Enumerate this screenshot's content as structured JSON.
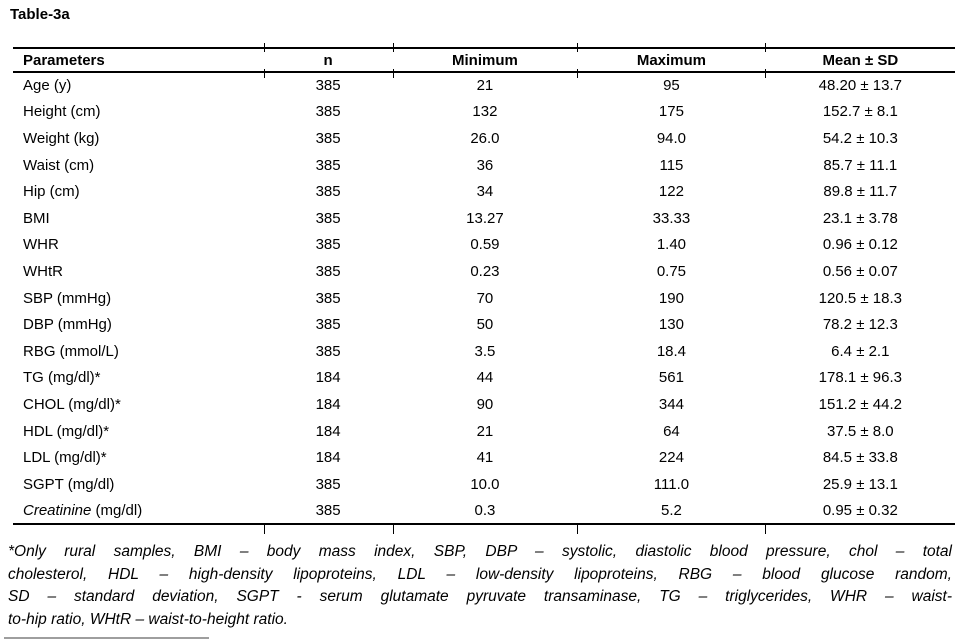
{
  "title": "Table-3a",
  "colors": {
    "text": "#000000",
    "rule": "#000000",
    "background": "#ffffff"
  },
  "table": {
    "columns": [
      "Parameters",
      "n",
      "Minimum",
      "Maximum",
      "Mean ± SD"
    ],
    "rows": [
      {
        "parameter": "Age (y)",
        "n": "385",
        "minimum": "21",
        "maximum": "95",
        "mean_sd": "48.20 ± 13.7"
      },
      {
        "parameter": "Height (cm)",
        "n": "385",
        "minimum": "132",
        "maximum": "175",
        "mean_sd": "152.7 ± 8.1"
      },
      {
        "parameter": "Weight (kg)",
        "n": "385",
        "minimum": "26.0",
        "maximum": "94.0",
        "mean_sd": "54.2 ± 10.3"
      },
      {
        "parameter": "Waist (cm)",
        "n": "385",
        "minimum": "36",
        "maximum": "115",
        "mean_sd": "85.7 ± 11.1"
      },
      {
        "parameter": "Hip (cm)",
        "n": "385",
        "minimum": "34",
        "maximum": "122",
        "mean_sd": "89.8 ± 11.7"
      },
      {
        "parameter": "BMI",
        "n": "385",
        "minimum": "13.27",
        "maximum": "33.33",
        "mean_sd": "23.1 ± 3.78"
      },
      {
        "parameter": "WHR",
        "n": "385",
        "minimum": "0.59",
        "maximum": "1.40",
        "mean_sd": "0.96 ± 0.12"
      },
      {
        "parameter": "WHtR",
        "n": "385",
        "minimum": "0.23",
        "maximum": "0.75",
        "mean_sd": "0.56 ± 0.07"
      },
      {
        "parameter": "SBP (mmHg)",
        "n": "385",
        "minimum": "70",
        "maximum": "190",
        "mean_sd": "120.5 ± 18.3"
      },
      {
        "parameter": "DBP (mmHg)",
        "n": "385",
        "minimum": "50",
        "maximum": "130",
        "mean_sd": "78.2 ± 12.3"
      },
      {
        "parameter": "RBG (mmol/L)",
        "n": "385",
        "minimum": "3.5",
        "maximum": "18.4",
        "mean_sd": "6.4 ± 2.1"
      },
      {
        "parameter": "TG (mg/dl)*",
        "n": "184",
        "minimum": "44",
        "maximum": "561",
        "mean_sd": "178.1 ± 96.3"
      },
      {
        "parameter": "CHOL (mg/dl)*",
        "n": "184",
        "minimum": "90",
        "maximum": "344",
        "mean_sd": "151.2 ± 44.2"
      },
      {
        "parameter": "HDL (mg/dl)*",
        "n": "184",
        "minimum": "21",
        "maximum": "64",
        "mean_sd": "37.5 ± 8.0"
      },
      {
        "parameter": "LDL (mg/dl)*",
        "n": "184",
        "minimum": "41",
        "maximum": "224",
        "mean_sd": "84.5 ± 33.8"
      },
      {
        "parameter": "SGPT (mg/dl)",
        "n": "385",
        "minimum": "10.0",
        "maximum": "111.0",
        "mean_sd": "25.9 ± 13.1"
      },
      {
        "parameter": "Creatinine (mg/dl)",
        "parameter_italic": "Creatinine",
        "parameter_rest": " (mg/dl)",
        "n": "385",
        "minimum": "0.3",
        "maximum": "5.2",
        "mean_sd": "0.95 ± 0.32"
      }
    ]
  },
  "footnote": {
    "lines": [
      "*Only rural samples, BMI – body mass index, SBP, DBP – systolic, diastolic blood pressure, chol – total",
      "cholesterol, HDL – high-density lipoproteins, LDL – low-density lipoproteins, RBG – blood glucose random,",
      "SD – standard deviation, SGPT - serum glutamate pyruvate transaminase, TG – triglycerides, WHR – waist-",
      "to-hip ratio, WHtR – waist-to-height ratio."
    ]
  }
}
